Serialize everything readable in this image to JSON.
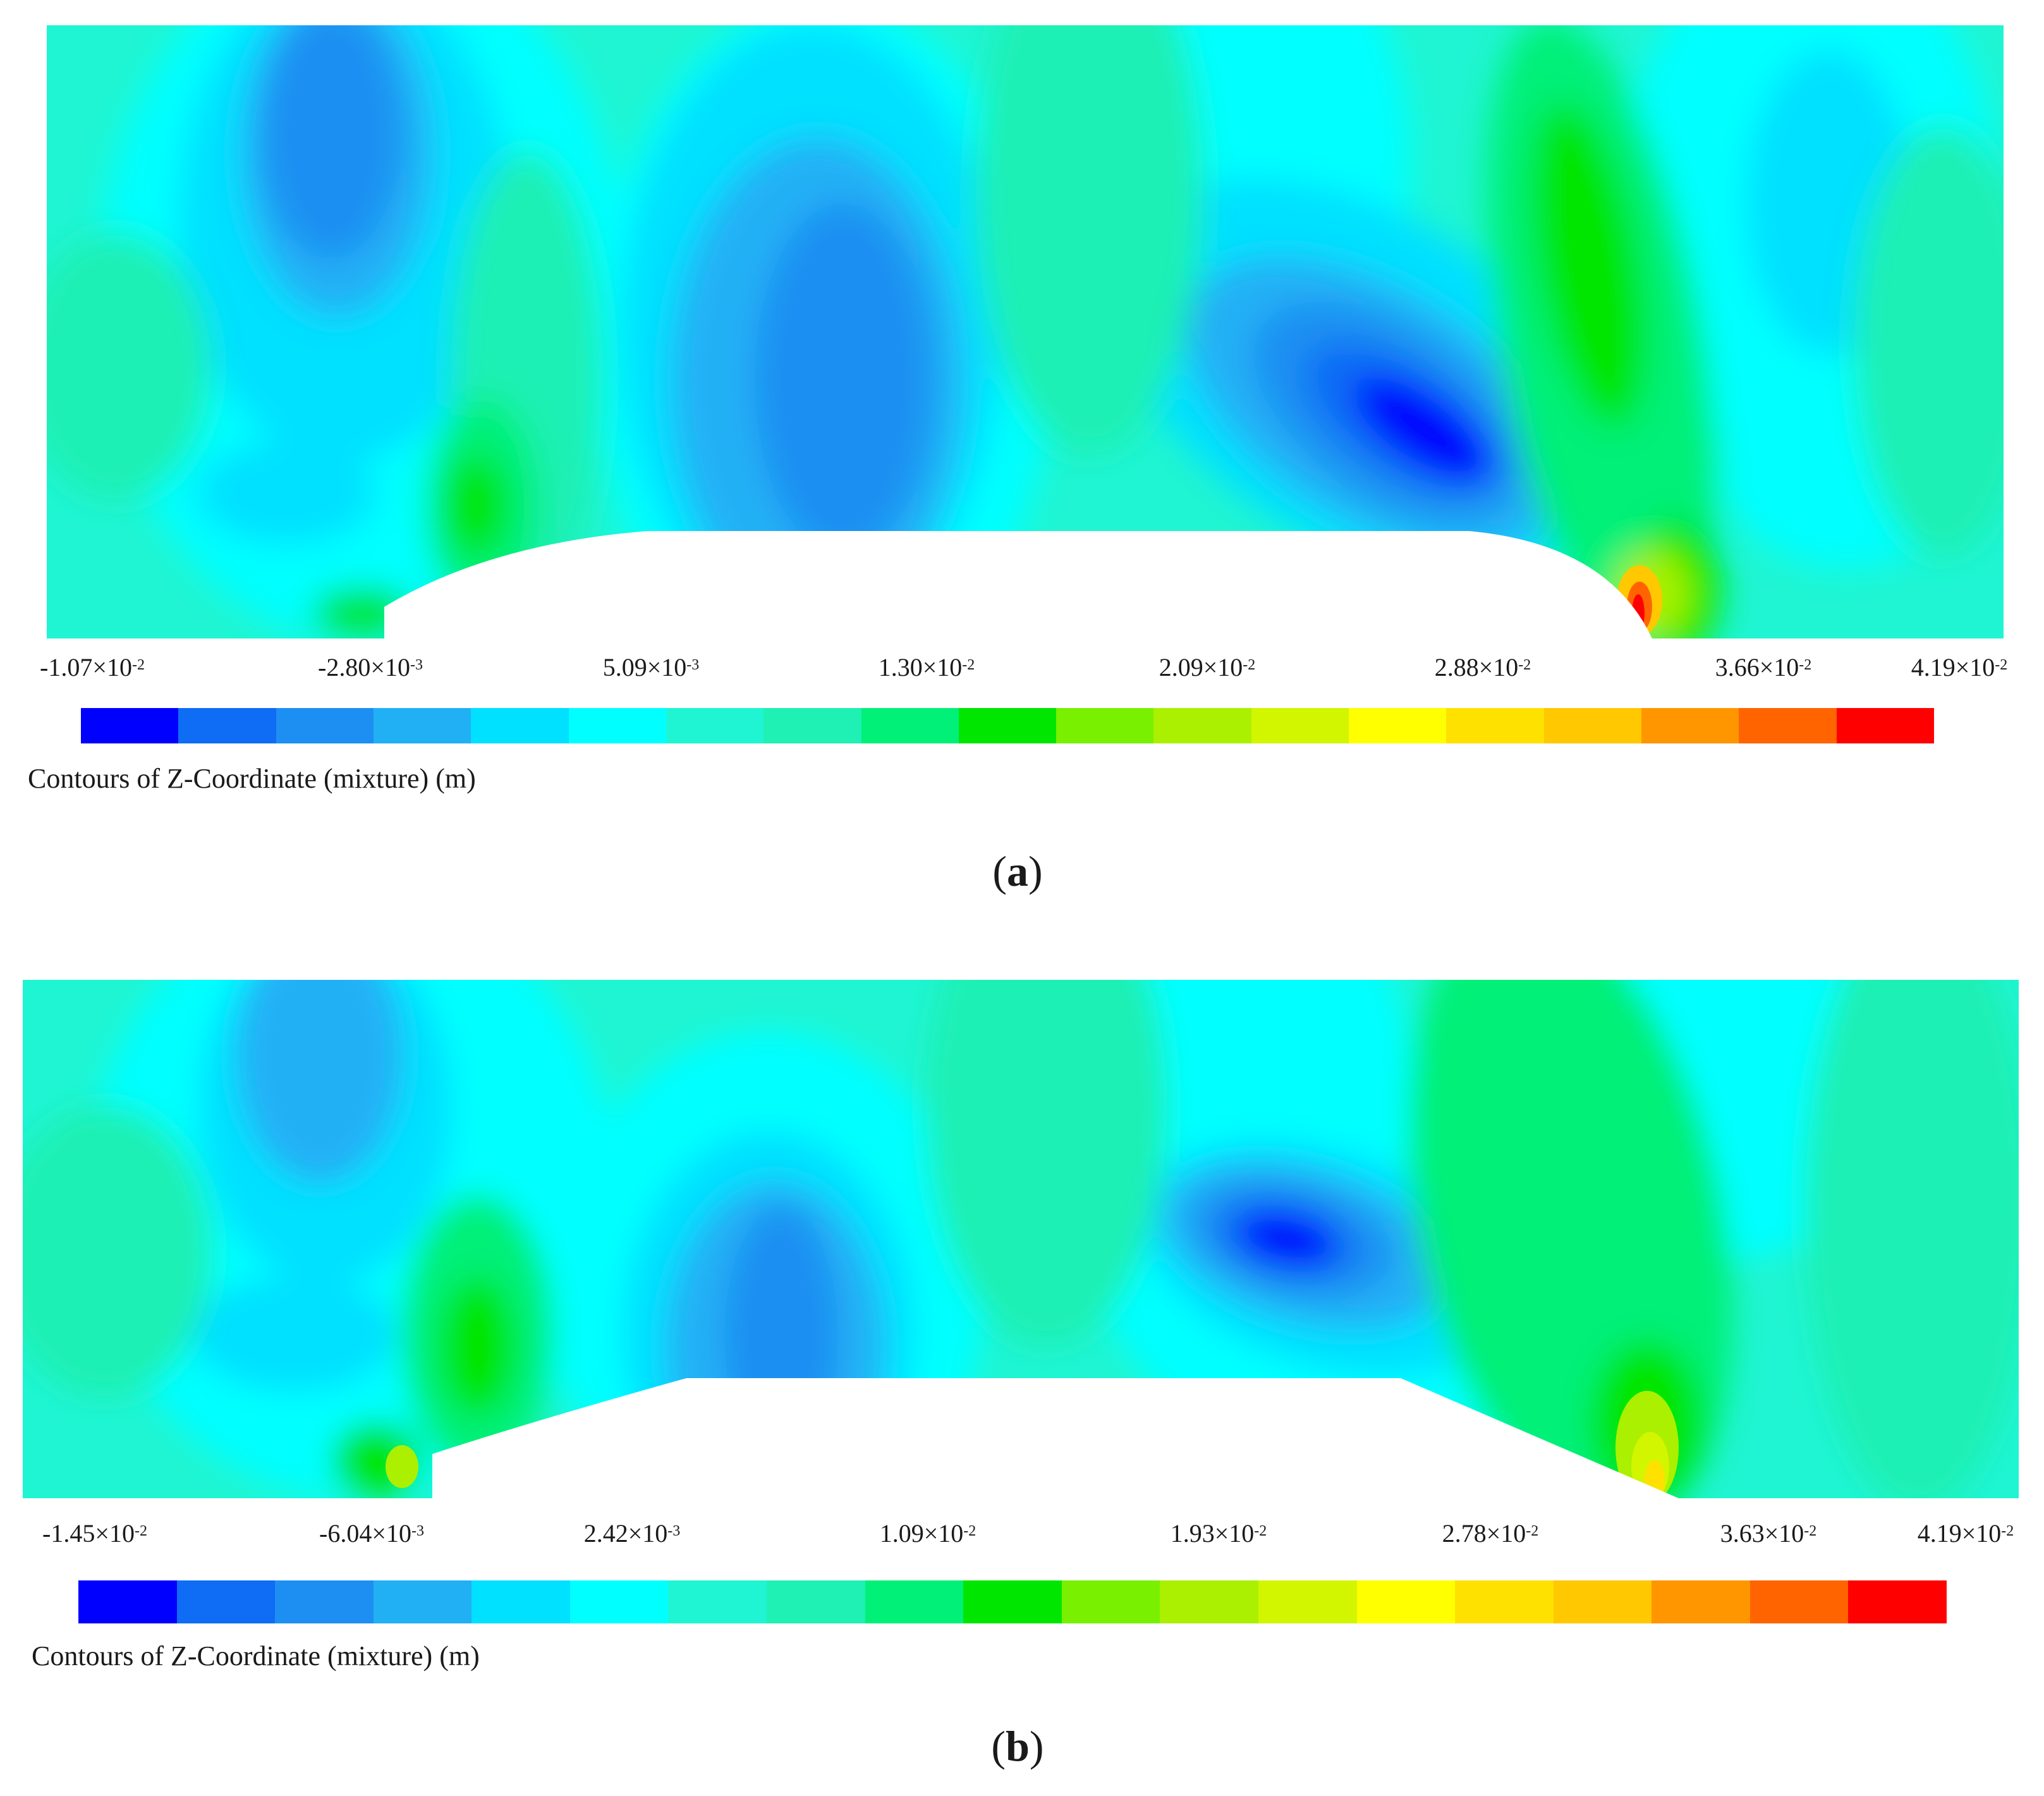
{
  "colormap": [
    "#0000ff",
    "#0f6cf5",
    "#1e8ff2",
    "#22b0f5",
    "#00e0ff",
    "#00ffff",
    "#1ff5d2",
    "#1ff0b4",
    "#00f078",
    "#00e600",
    "#78f000",
    "#aaf000",
    "#d2f500",
    "#ffff00",
    "#ffe100",
    "#ffc800",
    "#ff9600",
    "#ff6400",
    "#ff0000"
  ],
  "chart_data": [
    {
      "id": "a",
      "type": "contour",
      "panel_label": "a",
      "colorbar_title": "Contours of Z-Coordinate (mixture) (m)",
      "colorbar_range": [
        -0.0107,
        0.0419
      ],
      "colorbar_levels": 20,
      "tick_labels": [
        {
          "mantissa": "-1.07",
          "exponent": "-2"
        },
        {
          "mantissa": "-2.80",
          "exponent": "-3"
        },
        {
          "mantissa": "5.09",
          "exponent": "-3"
        },
        {
          "mantissa": "1.30",
          "exponent": "-2"
        },
        {
          "mantissa": "2.09",
          "exponent": "-2"
        },
        {
          "mantissa": "2.88",
          "exponent": "-2"
        },
        {
          "mantissa": "3.66",
          "exponent": "-2"
        },
        {
          "mantissa": "4.19",
          "exponent": "-2"
        }
      ]
    },
    {
      "id": "b",
      "type": "contour",
      "panel_label": "b",
      "colorbar_title": "Contours of Z-Coordinate (mixture) (m)",
      "colorbar_range": [
        -0.0145,
        0.0419
      ],
      "colorbar_levels": 20,
      "tick_labels": [
        {
          "mantissa": "-1.45",
          "exponent": "-2"
        },
        {
          "mantissa": "-6.04",
          "exponent": "-3"
        },
        {
          "mantissa": "2.42",
          "exponent": "-3"
        },
        {
          "mantissa": "1.09",
          "exponent": "-2"
        },
        {
          "mantissa": "1.93",
          "exponent": "-2"
        },
        {
          "mantissa": "2.78",
          "exponent": "-2"
        },
        {
          "mantissa": "3.63",
          "exponent": "-2"
        },
        {
          "mantissa": "4.19",
          "exponent": "-2"
        }
      ]
    }
  ]
}
